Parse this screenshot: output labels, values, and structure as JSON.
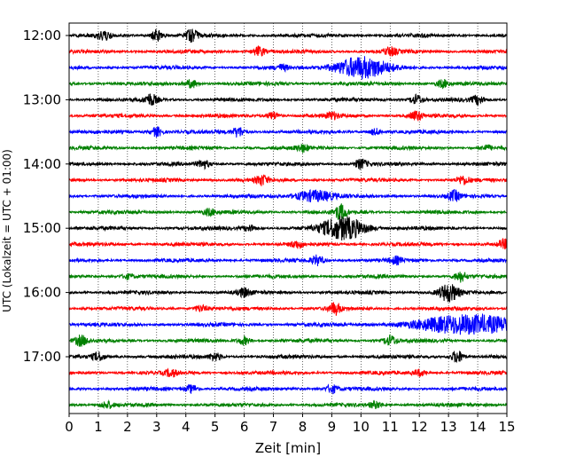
{
  "chart_data": {
    "type": "line",
    "title": "",
    "xlabel": "Zeit  [min]",
    "ylabel": "UTC (Lokalzeit = UTC + 01:00)",
    "xlim": [
      0,
      15
    ],
    "x_ticks": [
      "0",
      "1",
      "2",
      "3",
      "4",
      "5",
      "6",
      "7",
      "8",
      "9",
      "10",
      "11",
      "12",
      "13",
      "14",
      "15"
    ],
    "y_hour_labels": [
      {
        "label": "12:00",
        "row": 0
      },
      {
        "label": "13:00",
        "row": 4
      },
      {
        "label": "14:00",
        "row": 8
      },
      {
        "label": "15:00",
        "row": 12
      },
      {
        "label": "16:00",
        "row": 16
      },
      {
        "label": "17:00",
        "row": 20
      }
    ],
    "row_colors": [
      "#000000",
      "#ff0000",
      "#0000ff",
      "#008000"
    ],
    "grid": {
      "vertical_dotted": true
    },
    "rows": [
      {
        "start": "12:00",
        "color": "#000000",
        "events": [
          {
            "t": 1.2,
            "a": 0.6
          },
          {
            "t": 3.0,
            "a": 0.7
          },
          {
            "t": 4.2,
            "a": 0.7
          }
        ]
      },
      {
        "start": "12:15",
        "color": "#ff0000",
        "events": [
          {
            "t": 6.5,
            "a": 0.6
          },
          {
            "t": 11.0,
            "a": 0.5
          }
        ]
      },
      {
        "start": "12:30",
        "color": "#0000ff",
        "events": [
          {
            "t": 10.0,
            "a": 1.3,
            "w": 1.1
          },
          {
            "t": 7.3,
            "a": 0.3
          }
        ]
      },
      {
        "start": "12:45",
        "color": "#008000",
        "events": [
          {
            "t": 4.2,
            "a": 0.5
          },
          {
            "t": 12.8,
            "a": 0.5
          }
        ]
      },
      {
        "start": "13:00",
        "color": "#000000",
        "events": [
          {
            "t": 2.8,
            "a": 0.7
          },
          {
            "t": 11.9,
            "a": 0.6
          },
          {
            "t": 14.0,
            "a": 0.5
          }
        ]
      },
      {
        "start": "13:15",
        "color": "#ff0000",
        "events": [
          {
            "t": 7.0,
            "a": 0.5
          },
          {
            "t": 11.9,
            "a": 0.6
          },
          {
            "t": 9.0,
            "a": 0.4
          }
        ]
      },
      {
        "start": "13:30",
        "color": "#0000ff",
        "events": [
          {
            "t": 3.0,
            "a": 0.6
          },
          {
            "t": 5.8,
            "a": 0.6
          },
          {
            "t": 10.5,
            "a": 0.4
          }
        ]
      },
      {
        "start": "13:45",
        "color": "#008000",
        "events": [
          {
            "t": 8.0,
            "a": 0.4
          },
          {
            "t": 14.3,
            "a": 0.3
          }
        ]
      },
      {
        "start": "14:00",
        "color": "#000000",
        "events": [
          {
            "t": 4.6,
            "a": 0.5
          },
          {
            "t": 10.0,
            "a": 0.6
          }
        ]
      },
      {
        "start": "14:15",
        "color": "#ff0000",
        "events": [
          {
            "t": 6.6,
            "a": 0.6
          },
          {
            "t": 13.5,
            "a": 0.5
          }
        ]
      },
      {
        "start": "14:30",
        "color": "#0000ff",
        "events": [
          {
            "t": 8.4,
            "a": 0.7,
            "w": 0.8
          },
          {
            "t": 13.2,
            "a": 0.6
          }
        ]
      },
      {
        "start": "14:45",
        "color": "#008000",
        "events": [
          {
            "t": 9.3,
            "a": 0.9
          },
          {
            "t": 4.8,
            "a": 0.4
          }
        ]
      },
      {
        "start": "15:00",
        "color": "#000000",
        "events": [
          {
            "t": 9.4,
            "a": 1.4,
            "w": 0.9
          },
          {
            "t": 6.2,
            "a": 0.4
          }
        ]
      },
      {
        "start": "15:15",
        "color": "#ff0000",
        "events": [
          {
            "t": 14.9,
            "a": 0.5
          },
          {
            "t": 7.8,
            "a": 0.4
          }
        ]
      },
      {
        "start": "15:30",
        "color": "#0000ff",
        "events": [
          {
            "t": 8.5,
            "a": 0.6
          },
          {
            "t": 11.2,
            "a": 0.4
          }
        ]
      },
      {
        "start": "15:45",
        "color": "#008000",
        "events": [
          {
            "t": 13.4,
            "a": 0.6
          },
          {
            "t": 2.0,
            "a": 0.3
          }
        ]
      },
      {
        "start": "16:00",
        "color": "#000000",
        "events": [
          {
            "t": 13.0,
            "a": 1.1,
            "w": 0.4
          },
          {
            "t": 6.0,
            "a": 0.5
          }
        ]
      },
      {
        "start": "16:15",
        "color": "#ff0000",
        "events": [
          {
            "t": 9.1,
            "a": 0.7
          },
          {
            "t": 4.5,
            "a": 0.4
          }
        ]
      },
      {
        "start": "16:30",
        "color": "#0000ff",
        "events": [
          {
            "t": 13.8,
            "a": 1.2,
            "w": 2.2
          }
        ]
      },
      {
        "start": "16:45",
        "color": "#008000",
        "events": [
          {
            "t": 0.4,
            "a": 0.6
          },
          {
            "t": 6.0,
            "a": 0.5
          },
          {
            "t": 11.0,
            "a": 0.6
          }
        ]
      },
      {
        "start": "17:00",
        "color": "#000000",
        "events": [
          {
            "t": 1.0,
            "a": 0.5
          },
          {
            "t": 13.3,
            "a": 0.8
          },
          {
            "t": 5.0,
            "a": 0.5
          }
        ]
      },
      {
        "start": "17:15",
        "color": "#ff0000",
        "events": [
          {
            "t": 3.5,
            "a": 0.4
          },
          {
            "t": 12.0,
            "a": 0.4
          }
        ]
      },
      {
        "start": "17:30",
        "color": "#0000ff",
        "events": [
          {
            "t": 4.2,
            "a": 0.5
          },
          {
            "t": 9.0,
            "a": 0.5
          }
        ]
      },
      {
        "start": "17:45",
        "color": "#008000",
        "events": [
          {
            "t": 1.3,
            "a": 0.4
          },
          {
            "t": 10.5,
            "a": 0.4
          }
        ]
      }
    ]
  }
}
